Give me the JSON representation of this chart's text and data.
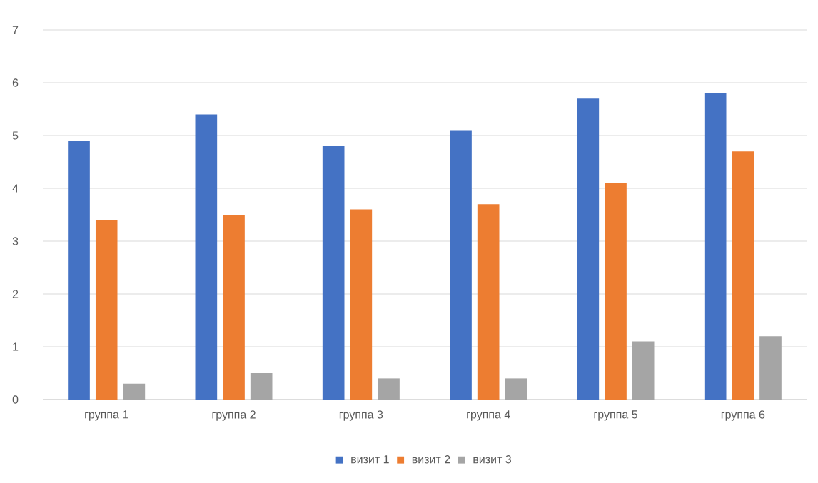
{
  "chart_data": {
    "type": "bar",
    "categories": [
      "группа 1",
      "группа 2",
      "группа 3",
      "группа 4",
      "группа 5",
      "группа 6"
    ],
    "series": [
      {
        "name": "визит 1",
        "color": "#4472c4",
        "values": [
          4.9,
          5.4,
          4.8,
          5.1,
          5.7,
          5.8
        ]
      },
      {
        "name": "визит 2",
        "color": "#ed7d31",
        "values": [
          3.4,
          3.5,
          3.6,
          3.7,
          4.1,
          4.7
        ]
      },
      {
        "name": "визит 3",
        "color": "#a5a5a5",
        "values": [
          0.3,
          0.5,
          0.4,
          0.4,
          1.1,
          1.2
        ]
      }
    ],
    "ylim": [
      0,
      7
    ],
    "yticks": [
      0,
      1,
      2,
      3,
      4,
      5,
      6,
      7
    ],
    "grid": "y",
    "legend": "bottom"
  }
}
